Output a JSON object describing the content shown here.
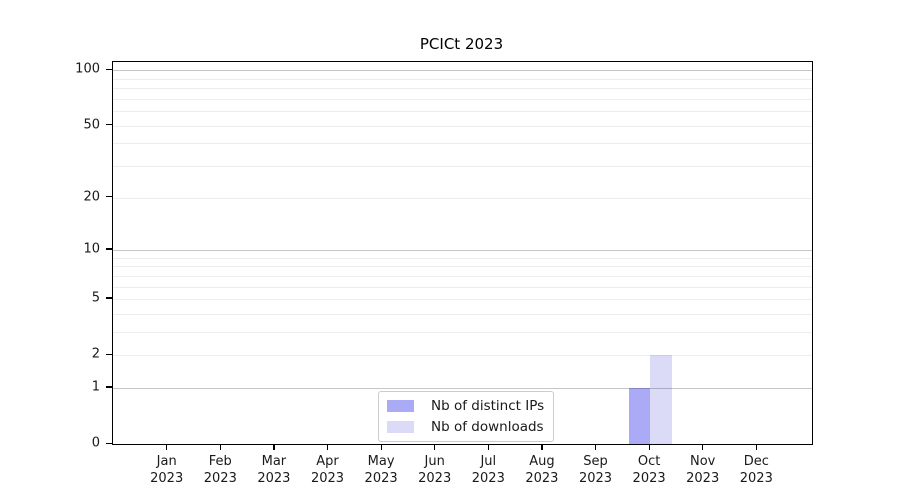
{
  "chart_data": {
    "type": "bar",
    "title": "PCICt 2023",
    "x": {
      "months": [
        "Jan",
        "Feb",
        "Mar",
        "Apr",
        "May",
        "Jun",
        "Jul",
        "Aug",
        "Sep",
        "Oct",
        "Nov",
        "Dec"
      ],
      "year": "2023"
    },
    "series": [
      {
        "name": "Nb of distinct IPs",
        "color": "#aaaaf7",
        "values": [
          0,
          0,
          0,
          0,
          0,
          0,
          0,
          0,
          0,
          1,
          0,
          0
        ]
      },
      {
        "name": "Nb of downloads",
        "color": "#dbdbf8",
        "values": [
          0,
          0,
          0,
          0,
          0,
          0,
          0,
          0,
          0,
          2,
          0,
          0
        ]
      }
    ],
    "y_axis": {
      "scale": "log(value+1)",
      "tick_values": [
        0,
        1,
        2,
        5,
        10,
        20,
        50,
        100
      ],
      "tick_labels": [
        "0",
        "1",
        "2",
        "5",
        "10",
        "20",
        "50",
        "100"
      ],
      "range_max": 111,
      "decade_gridlines": [
        1,
        10,
        100
      ],
      "minor_gridlines": [
        2,
        3,
        4,
        5,
        6,
        7,
        8,
        9,
        20,
        30,
        40,
        50,
        60,
        70,
        80,
        90
      ]
    },
    "legend": {
      "position": "lower center"
    },
    "grid": "horizontal",
    "colors": {
      "axis": "#000000",
      "decade_gridline": "#c6c6c6",
      "minor_gridline": "#ededed",
      "text": "#1a1a1a",
      "background": "#ffffff"
    }
  }
}
